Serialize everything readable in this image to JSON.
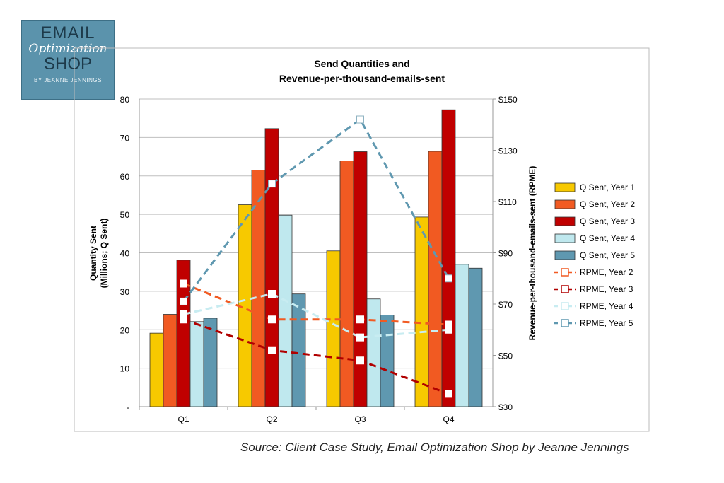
{
  "logo": {
    "line1": "EMAIL",
    "line2": "Optimization",
    "line3": "SHOP",
    "line4": "BY JEANNE JENNINGS"
  },
  "source": "Source: Client Case Study, Email Optimization Shop by Jeanne Jennings",
  "chart_data": {
    "type": "bar",
    "title_line1": "Send Quantities and",
    "title_line2": "Revenue-per-thousand-emails-sent",
    "ylabel_line1": "Quantity Sent",
    "ylabel_line2": "(Millions; Q Sent)",
    "y2label": "Revenue-per-thousand-emails-sent (RPME)",
    "categories": [
      "Q1",
      "Q2",
      "Q3",
      "Q4"
    ],
    "ylim": [
      0,
      80
    ],
    "yticks": [
      "-",
      "10",
      "20",
      "30",
      "40",
      "50",
      "60",
      "70",
      "80"
    ],
    "y2lim": [
      30,
      150
    ],
    "y2ticks": [
      "$30",
      "$50",
      "$70",
      "$90",
      "$110",
      "$130",
      "$150"
    ],
    "grid": true,
    "legend": "right",
    "bar_series": [
      {
        "name": "Q Sent, Year 1",
        "color": "#f7c900",
        "values": [
          19.1,
          52.5,
          40.5,
          49.3
        ]
      },
      {
        "name": "Q Sent, Year 2",
        "color": "#f15a22",
        "values": [
          24.0,
          61.5,
          63.9,
          66.4
        ]
      },
      {
        "name": "Q Sent, Year 3",
        "color": "#c00000",
        "values": [
          38.1,
          72.3,
          66.3,
          77.2
        ]
      },
      {
        "name": "Q Sent, Year 4",
        "color": "#bfe8ee",
        "values": [
          22.1,
          49.8,
          28.0,
          37.0
        ]
      },
      {
        "name": "Q Sent, Year 5",
        "color": "#5f98b0",
        "values": [
          23.0,
          29.3,
          23.8,
          36.0
        ]
      }
    ],
    "line_series": [
      {
        "name": "RPME, Year 2",
        "color": "#f15a22",
        "values": [
          78,
          64,
          64,
          62
        ]
      },
      {
        "name": "RPME, Year 3",
        "color": "#b00000",
        "values": [
          64,
          52,
          48,
          35
        ]
      },
      {
        "name": "RPME, Year 4",
        "color": "#c8ecf1",
        "values": [
          66,
          74,
          57,
          60
        ]
      },
      {
        "name": "RPME, Year 5",
        "color": "#5f98b0",
        "values": [
          71,
          117,
          142,
          80
        ]
      }
    ]
  }
}
